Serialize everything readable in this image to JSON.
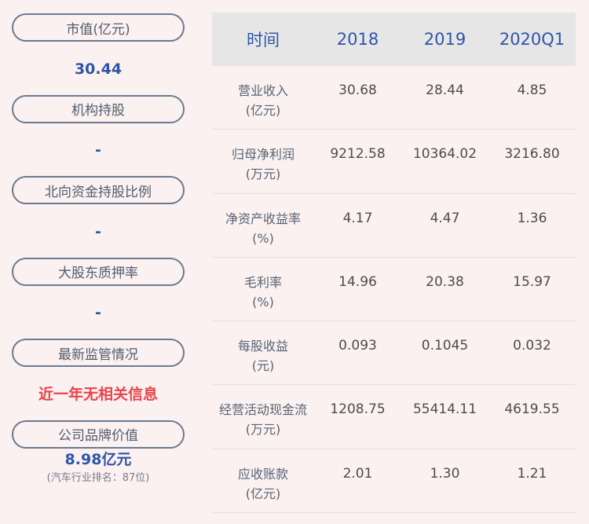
{
  "colors": {
    "background": "#faf1f0",
    "accent_blue": "#2e55a8",
    "alert_red": "#e9434a",
    "pill_border": "#6b7a90",
    "pill_text": "#525c6e",
    "header_bg": "#e6e6e7",
    "row_label": "#5a6374",
    "row_value": "#4c4c4c",
    "separator": "#e4e0e0"
  },
  "sidebar": {
    "items": [
      {
        "label": "市值(亿元)",
        "value": "30.44"
      },
      {
        "label": "机构持股",
        "value": "-"
      },
      {
        "label": "北向资金持股比例",
        "value": "-"
      },
      {
        "label": "大股东质押率",
        "value": "-"
      },
      {
        "label": "最新监管情况",
        "value": "近一年无相关信息"
      },
      {
        "label": "公司品牌价值",
        "value": "8.98亿元",
        "subvalue": "(汽车行业排名：87位)"
      }
    ]
  },
  "table": {
    "headers": [
      "时间",
      "2018",
      "2019",
      "2020Q1"
    ],
    "rows": [
      {
        "label": "营业收入",
        "unit": "(亿元)",
        "values": [
          "30.68",
          "28.44",
          "4.85"
        ]
      },
      {
        "label": "归母净利润",
        "unit": "(万元)",
        "values": [
          "9212.58",
          "10364.02",
          "3216.80"
        ]
      },
      {
        "label": "净资产收益率",
        "unit": "(%)",
        "values": [
          "4.17",
          "4.47",
          "1.36"
        ]
      },
      {
        "label": "毛利率",
        "unit": "(%)",
        "values": [
          "14.96",
          "20.38",
          "15.97"
        ]
      },
      {
        "label": "每股收益",
        "unit": "(元)",
        "values": [
          "0.093",
          "0.1045",
          "0.032"
        ]
      },
      {
        "label": "经营活动现金流",
        "unit": "(万元)",
        "values": [
          "1208.75",
          "55414.11",
          "4619.55"
        ]
      },
      {
        "label": "应收账款",
        "unit": "(亿元)",
        "values": [
          "2.01",
          "1.30",
          "1.21"
        ]
      }
    ]
  }
}
